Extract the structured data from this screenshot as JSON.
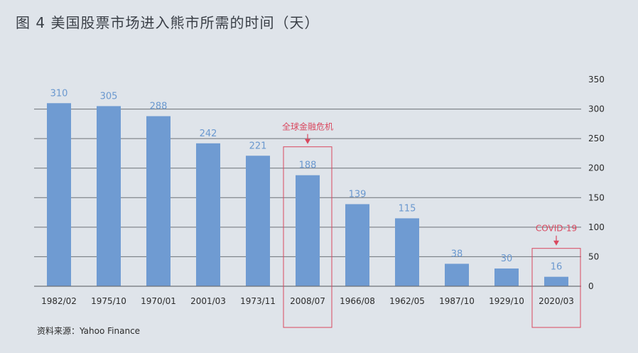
{
  "title": "图 4  美国股票市场进入熊市所需的时间（天）",
  "source": "资料来源：Yahoo  Finance",
  "colors": {
    "bar": "#6f9bd2",
    "value_label": "#6a98cf",
    "annotation": "#d9485f",
    "grid": "#6d7278",
    "axis_text": "#2b2b2b"
  },
  "chart_data": {
    "type": "bar",
    "title": "",
    "xlabel": "",
    "ylabel": "",
    "categories": [
      "1982/02",
      "1975/10",
      "1970/01",
      "2001/03",
      "1973/11",
      "2008/07",
      "1966/08",
      "1962/05",
      "1987/10",
      "1929/10",
      "2020/03"
    ],
    "values": [
      310,
      305,
      288,
      242,
      221,
      188,
      139,
      115,
      38,
      30,
      16
    ],
    "ylim": [
      0,
      350
    ],
    "yticks": [
      0,
      50,
      100,
      150,
      200,
      250,
      300,
      350
    ],
    "y_axis_side": "right",
    "grid": true,
    "annotations": [
      {
        "text": "全球金融危机",
        "category": "2008/07"
      },
      {
        "text": "COVID-19",
        "category": "2020/03"
      }
    ]
  }
}
